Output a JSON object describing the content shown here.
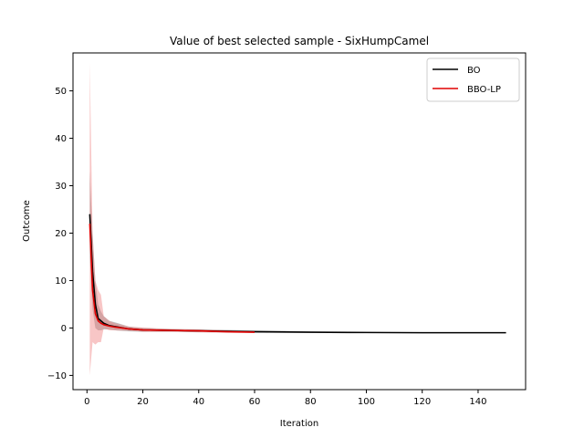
{
  "chart_data": {
    "type": "line",
    "title": "Value of best selected sample - SixHumpCamel",
    "xlabel": "Iteration",
    "ylabel": "Outcome",
    "xlim": [
      -5,
      157
    ],
    "ylim": [
      -13,
      58
    ],
    "xticks": [
      0,
      20,
      40,
      60,
      80,
      100,
      120,
      140
    ],
    "yticks": [
      -10,
      0,
      10,
      20,
      30,
      40,
      50
    ],
    "grid": false,
    "legend_position": "top-right",
    "series": [
      {
        "name": "BO",
        "color": "#000000",
        "band_color": "#000000",
        "x": [
          1,
          2,
          3,
          4,
          5,
          6,
          8,
          10,
          15,
          20,
          30,
          40,
          50,
          60,
          70,
          80,
          100,
          120,
          150
        ],
        "y": [
          24,
          12,
          5,
          2,
          1.5,
          1,
          0.5,
          0.3,
          -0.2,
          -0.4,
          -0.5,
          -0.6,
          -0.7,
          -0.8,
          -0.85,
          -0.9,
          -0.95,
          -1.0,
          -1.0
        ],
        "lower": [
          15,
          4,
          0,
          -0.5,
          -0.5,
          -0.3,
          -0.3,
          -0.5,
          -0.7,
          -0.8,
          -0.8,
          -0.9,
          -0.95,
          -1.0,
          -1.0,
          -1.03,
          -1.03,
          -1.03,
          -1.03
        ],
        "upper": [
          33,
          20,
          10,
          5,
          3.5,
          2.5,
          1.5,
          1.2,
          0.3,
          0.0,
          -0.2,
          -0.3,
          -0.4,
          -0.5,
          -0.6,
          -0.75,
          -0.85,
          -0.95,
          -0.97
        ]
      },
      {
        "name": "BBO-LP",
        "color": "#e00000",
        "band_color": "#f08080",
        "x": [
          1,
          2,
          3,
          4,
          5,
          6,
          8,
          10,
          15,
          20,
          30,
          40,
          50,
          60
        ],
        "y": [
          22,
          8,
          3,
          1.5,
          1,
          0.7,
          0.4,
          0.2,
          -0.2,
          -0.4,
          -0.5,
          -0.6,
          -0.8,
          -0.9
        ],
        "lower": [
          -10,
          -3,
          -3.5,
          -3,
          -3,
          0,
          -0.5,
          -0.5,
          -0.6,
          -0.8,
          -0.8,
          -0.9,
          -1.0,
          -1.0
        ],
        "upper": [
          56,
          20,
          10,
          8,
          7,
          2.5,
          1.5,
          1.0,
          0.3,
          0.1,
          -0.2,
          -0.3,
          -0.5,
          -0.7
        ]
      }
    ]
  }
}
